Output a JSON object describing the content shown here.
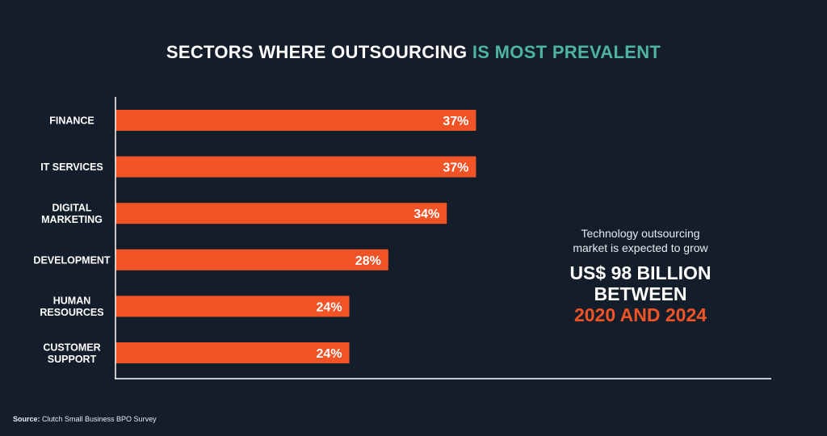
{
  "header": {
    "title_part1": "SECTORS WHERE OUTSOURCING ",
    "title_part2": "IS MOST PREVALENT"
  },
  "chart_data": {
    "type": "bar",
    "orientation": "horizontal",
    "categories": [
      [
        "FINANCE"
      ],
      [
        "IT SERVICES"
      ],
      [
        "DIGITAL",
        "MARKETING"
      ],
      [
        "DEVELOPMENT"
      ],
      [
        "HUMAN",
        "RESOURCES"
      ],
      [
        "CUSTOMER",
        "SUPPORT"
      ]
    ],
    "values": [
      37,
      37,
      34,
      28,
      24,
      24
    ],
    "value_labels": [
      "37%",
      "37%",
      "34%",
      "28%",
      "24%",
      "24%"
    ],
    "xlim": [
      0,
      67.3
    ],
    "grid": false,
    "bar_color": "#f05426"
  },
  "callout": {
    "intro_line1": "Technology outsourcing",
    "intro_line2": "market is expected to grow",
    "big_line1": "US$ 98 BILLION",
    "big_line2": "BETWEEN",
    "big_line3": "2020 AND 2024"
  },
  "footer": {
    "source_label": "Source:",
    "source_text": " Clutch Small Business BPO Survey"
  },
  "colors": {
    "background": "#141d2a",
    "bar": "#f05426",
    "title_accent": "#4fb3a4",
    "callout_accent": "#f05426"
  }
}
